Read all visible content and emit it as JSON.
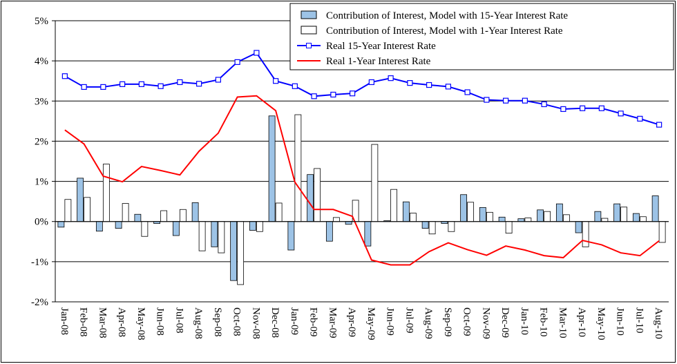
{
  "chart_data": {
    "type": "bar",
    "categories": [
      "Jan-08",
      "Feb-08",
      "Mar-08",
      "Apr-08",
      "May-08",
      "Jun-08",
      "Jul-08",
      "Aug-08",
      "Sep-08",
      "Oct-08",
      "Nov-08",
      "Dec-08",
      "Jan-09",
      "Feb-09",
      "Mar-09",
      "Apr-09",
      "May-09",
      "Jun-09",
      "Jul-09",
      "Aug-09",
      "Sep-09",
      "Oct-09",
      "Nov-09",
      "Dec-09",
      "Jan-10",
      "Feb-10",
      "Mar-10",
      "Apr-10",
      "May-10",
      "Jun-10",
      "Jul-10",
      "Aug-10"
    ],
    "series": [
      {
        "name": "Contribution of Interest, Model with 15-Year Interest Rate",
        "type": "bar",
        "color": "#9dc3e6",
        "values": [
          -0.14,
          1.08,
          -0.24,
          -0.17,
          0.18,
          -0.05,
          -0.35,
          0.47,
          -0.63,
          -1.47,
          -0.22,
          2.63,
          -0.71,
          1.17,
          -0.49,
          -0.07,
          -0.61,
          0.02,
          0.49,
          -0.17,
          -0.05,
          0.67,
          0.35,
          0.11,
          0.07,
          0.29,
          0.44,
          -0.28,
          0.25,
          0.44,
          0.2,
          0.64
        ]
      },
      {
        "name": "Contribution of Interest, Model with 1-Year Interest Rate",
        "type": "bar",
        "color": "#ffffff",
        "values": [
          0.55,
          0.6,
          1.43,
          0.45,
          -0.37,
          0.27,
          0.3,
          -0.73,
          -0.78,
          -1.57,
          -0.25,
          0.46,
          2.66,
          1.32,
          0.1,
          0.53,
          1.92,
          0.8,
          0.21,
          -0.31,
          -0.25,
          0.48,
          0.23,
          -0.29,
          0.09,
          0.25,
          0.17,
          -0.63,
          0.08,
          0.36,
          0.12,
          -0.52
        ]
      },
      {
        "name": "Real 15-Year Interest Rate",
        "type": "line",
        "color": "#0000ff",
        "marker": "square",
        "values": [
          3.62,
          3.35,
          3.35,
          3.42,
          3.42,
          3.37,
          3.47,
          3.43,
          3.53,
          3.97,
          4.2,
          3.5,
          3.37,
          3.12,
          3.16,
          3.19,
          3.47,
          3.57,
          3.45,
          3.4,
          3.36,
          3.22,
          3.03,
          3.01,
          3.01,
          2.92,
          2.8,
          2.82,
          2.82,
          2.69,
          2.56,
          2.41
        ]
      },
      {
        "name": "Real 1-Year Interest Rate",
        "type": "line",
        "color": "#ff0000",
        "values": [
          2.28,
          1.93,
          1.13,
          0.99,
          1.37,
          1.27,
          1.16,
          1.75,
          2.2,
          3.1,
          3.13,
          2.76,
          0.98,
          0.3,
          0.3,
          0.13,
          -0.96,
          -1.08,
          -1.08,
          -0.75,
          -0.53,
          -0.7,
          -0.84,
          -0.61,
          -0.71,
          -0.85,
          -0.9,
          -0.47,
          -0.58,
          -0.78,
          -0.85,
          -0.48
        ]
      }
    ],
    "ylim": [
      -2,
      5
    ],
    "yticks": [
      {
        "value": -2,
        "label": "-2%"
      },
      {
        "value": -1,
        "label": "-1%"
      },
      {
        "value": 0,
        "label": "0%"
      },
      {
        "value": 1,
        "label": "1%"
      },
      {
        "value": 2,
        "label": "2%"
      },
      {
        "value": 3,
        "label": "3%"
      },
      {
        "value": 4,
        "label": "4%"
      },
      {
        "value": 5,
        "label": "5%"
      }
    ],
    "grid": true,
    "legend": "top-right"
  }
}
